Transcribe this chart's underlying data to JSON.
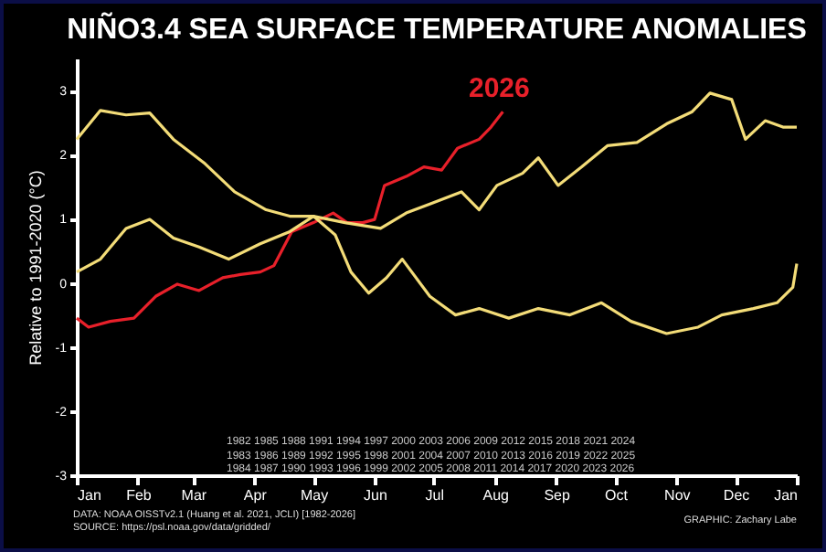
{
  "chart_data": {
    "type": "line",
    "title": "NIÑO3.4 SEA SURFACE TEMPERATURE ANOMALIES",
    "ylabel": "Relative to 1991-2020 (°C)",
    "xlim": [
      "2026-01-01",
      "2027-01-01"
    ],
    "xticks": [
      {
        "value": "2026-01-01",
        "label": "Jan"
      },
      {
        "value": "2026-02-01",
        "label": "Feb"
      },
      {
        "value": "2026-03-01",
        "label": "Mar"
      },
      {
        "value": "2026-04-01",
        "label": "Apr"
      },
      {
        "value": "2026-05-01",
        "label": "May"
      },
      {
        "value": "2026-06-01",
        "label": "Jun"
      },
      {
        "value": "2026-07-01",
        "label": "Jul"
      },
      {
        "value": "2026-08-01",
        "label": "Aug"
      },
      {
        "value": "2026-09-01",
        "label": "Sep"
      },
      {
        "value": "2026-10-01",
        "label": "Oct"
      },
      {
        "value": "2026-11-01",
        "label": "Nov"
      },
      {
        "value": "2026-12-01",
        "label": "Dec"
      },
      {
        "value": "2027-01-01",
        "label": "Jan"
      }
    ],
    "ylim": [
      -3,
      3.5
    ],
    "yticks": [
      -3,
      -2,
      -1,
      0,
      1,
      2,
      3
    ],
    "grid": false,
    "legend": false,
    "line_style": "solid",
    "series": [
      {
        "name": "2026",
        "color": "#e8202a",
        "x": [
          "2026-01-01",
          "2026-01-07",
          "2026-01-18",
          "2026-01-30",
          "2026-02-10",
          "2026-02-21",
          "2026-03-04",
          "2026-03-16",
          "2026-03-25",
          "2026-04-04",
          "2026-04-11",
          "2026-04-20",
          "2026-05-01",
          "2026-05-11",
          "2026-05-18",
          "2026-05-26",
          "2026-06-01",
          "2026-06-06",
          "2026-06-17",
          "2026-06-26",
          "2026-07-05",
          "2026-07-13",
          "2026-07-24",
          "2026-07-30",
          "2026-08-05"
        ],
        "values": [
          -0.55,
          -0.69,
          -0.6,
          -0.55,
          -0.21,
          -0.02,
          -0.12,
          0.08,
          0.13,
          0.17,
          0.27,
          0.8,
          0.94,
          1.09,
          0.94,
          0.94,
          0.99,
          1.52,
          1.66,
          1.81,
          1.76,
          2.1,
          2.24,
          2.43,
          2.67
        ]
      },
      {
        "color": "#f3dc78",
        "x": [
          "2026-01-01",
          "2026-01-13",
          "2026-01-26",
          "2026-02-07",
          "2026-02-19",
          "2026-03-07",
          "2026-03-22",
          "2026-04-07",
          "2026-04-19",
          "2026-05-01",
          "2026-05-12",
          "2026-05-20",
          "2026-05-29",
          "2026-06-07",
          "2026-06-15",
          "2026-06-29",
          "2026-07-12",
          "2026-07-24",
          "2026-08-08",
          "2026-08-23",
          "2026-09-08",
          "2026-09-24",
          "2026-10-09",
          "2026-10-27",
          "2026-11-12",
          "2026-11-24",
          "2026-12-10",
          "2026-12-22",
          "2026-12-30",
          "2027-01-01"
        ],
        "values": [
          2.24,
          2.69,
          2.62,
          2.65,
          2.24,
          1.86,
          1.42,
          1.14,
          1.04,
          1.04,
          0.75,
          0.17,
          -0.16,
          0.08,
          0.37,
          -0.21,
          -0.5,
          -0.4,
          -0.55,
          -0.4,
          -0.5,
          -0.31,
          -0.6,
          -0.79,
          -0.69,
          -0.5,
          -0.4,
          -0.31,
          -0.07,
          0.3
        ]
      },
      {
        "color": "#f3dc78",
        "x": [
          "2026-01-01",
          "2026-01-13",
          "2026-01-26",
          "2026-02-07",
          "2026-02-19",
          "2026-03-04",
          "2026-03-19",
          "2026-04-04",
          "2026-04-19",
          "2026-05-01",
          "2026-05-17",
          "2026-06-04",
          "2026-06-17",
          "2026-06-29",
          "2026-07-15",
          "2026-07-24",
          "2026-08-02",
          "2026-08-15",
          "2026-08-23",
          "2026-09-02",
          "2026-09-14",
          "2026-09-27",
          "2026-10-12",
          "2026-10-27",
          "2026-11-09",
          "2026-11-18",
          "2026-11-29",
          "2026-12-06",
          "2026-12-16",
          "2026-12-25",
          "2027-01-01"
        ],
        "values": [
          0.17,
          0.37,
          0.85,
          0.99,
          0.7,
          0.56,
          0.37,
          0.61,
          0.8,
          1.04,
          0.94,
          0.85,
          1.09,
          1.23,
          1.42,
          1.14,
          1.52,
          1.71,
          1.95,
          1.52,
          1.81,
          2.14,
          2.19,
          2.48,
          2.67,
          2.96,
          2.86,
          2.24,
          2.53,
          2.43,
          2.43
        ]
      }
    ],
    "annotations": [
      "1982 1985 1988 1991 1994 1997 2000 2003 2006 2009 2012 2015 2018 2021 2024",
      "1983 1986 1989 1992 1995 1998 2001 2004 2007 2010 2013 2016 2019 2022 2025",
      "1984 1987 1990 1993 1996 1999 2002 2005 2008 2011 2014 2017 2020 2023 2026",
      "DATA: NOAA OISSTv2.1 (Huang et al. 2021, JCLI) [1982-2026]",
      "SOURCE: https://psl.noaa.gov/data/gridded/",
      "GRAPHIC: Zachary Labe"
    ]
  }
}
